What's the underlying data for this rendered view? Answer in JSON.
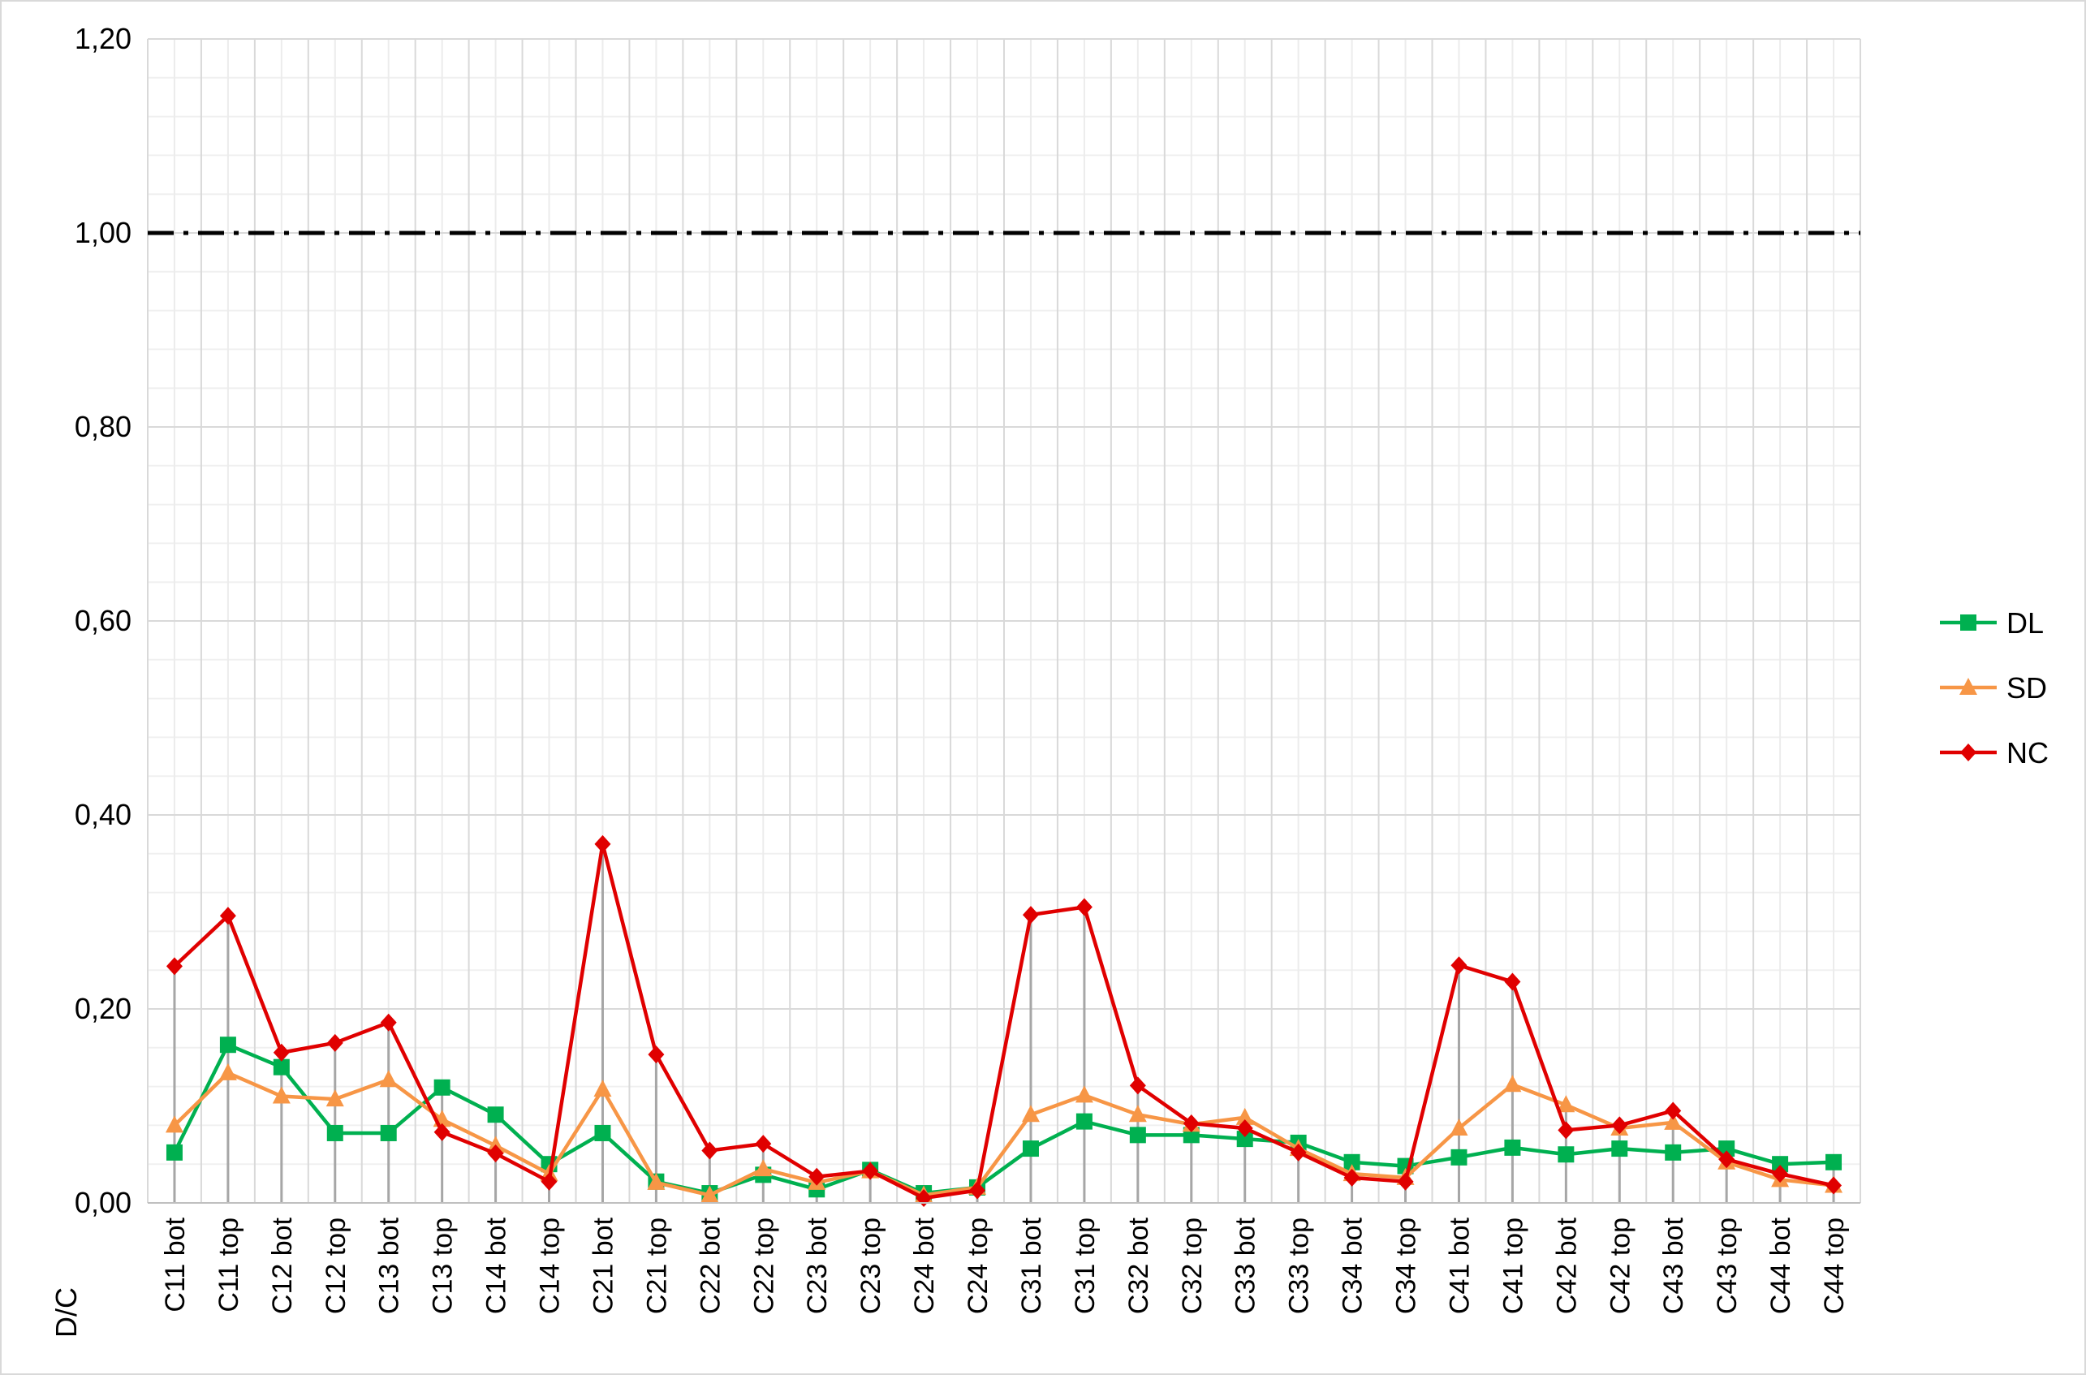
{
  "chart_data": {
    "type": "line",
    "title": "",
    "xlabel": "",
    "ylabel": "D/C",
    "ylim": [
      0,
      1.2
    ],
    "yticks": [
      "0,00",
      "0,20",
      "0,40",
      "0,60",
      "0,80",
      "1,00",
      "1,20"
    ],
    "categories": [
      "C11 bot",
      "C11 top",
      "C12 bot",
      "C12 top",
      "C13 bot",
      "C13 top",
      "C14 bot",
      "C14 top",
      "C21 bot",
      "C21 top",
      "C22 bot",
      "C22 top",
      "C23 bot",
      "C23 top",
      "C24 bot",
      "C24 top",
      "C31 bot",
      "C31 top",
      "C32 bot",
      "C32 top",
      "C33 bot",
      "C33 top",
      "C34 bot",
      "C34 top",
      "C41 bot",
      "C41 top",
      "C42 bot",
      "C42 top",
      "C43 bot",
      "C43 top",
      "C44 bot",
      "C44 top"
    ],
    "series": [
      {
        "name": "DL",
        "color": "#00b050",
        "marker": "square",
        "values": [
          0.052,
          0.163,
          0.14,
          0.072,
          0.072,
          0.119,
          0.091,
          0.04,
          0.072,
          0.022,
          0.01,
          0.029,
          0.014,
          0.034,
          0.01,
          0.016,
          0.056,
          0.084,
          0.07,
          0.07,
          0.066,
          0.062,
          0.042,
          0.038,
          0.047,
          0.057,
          0.05,
          0.056,
          0.052,
          0.056,
          0.04,
          0.042
        ]
      },
      {
        "name": "SD",
        "color": "#f79646",
        "marker": "triangle",
        "values": [
          0.08,
          0.134,
          0.11,
          0.107,
          0.127,
          0.086,
          0.059,
          0.03,
          0.117,
          0.021,
          0.008,
          0.035,
          0.021,
          0.033,
          0.008,
          0.016,
          0.091,
          0.111,
          0.091,
          0.081,
          0.088,
          0.056,
          0.03,
          0.026,
          0.077,
          0.122,
          0.101,
          0.077,
          0.083,
          0.042,
          0.024,
          0.018
        ]
      },
      {
        "name": "NC",
        "color": "#e00000",
        "marker": "diamond",
        "values": [
          0.244,
          0.296,
          0.155,
          0.165,
          0.186,
          0.073,
          0.051,
          0.022,
          0.37,
          0.153,
          0.054,
          0.061,
          0.027,
          0.033,
          0.005,
          0.013,
          0.297,
          0.305,
          0.121,
          0.082,
          0.077,
          0.052,
          0.026,
          0.022,
          0.245,
          0.228,
          0.075,
          0.08,
          0.095,
          0.045,
          0.03,
          0.018
        ]
      }
    ],
    "reference_line": {
      "value": 1.0,
      "style": "dash-dot",
      "color": "#000000"
    },
    "drop_lines": true,
    "grid": true,
    "minor_grid": true,
    "legend": "right"
  }
}
